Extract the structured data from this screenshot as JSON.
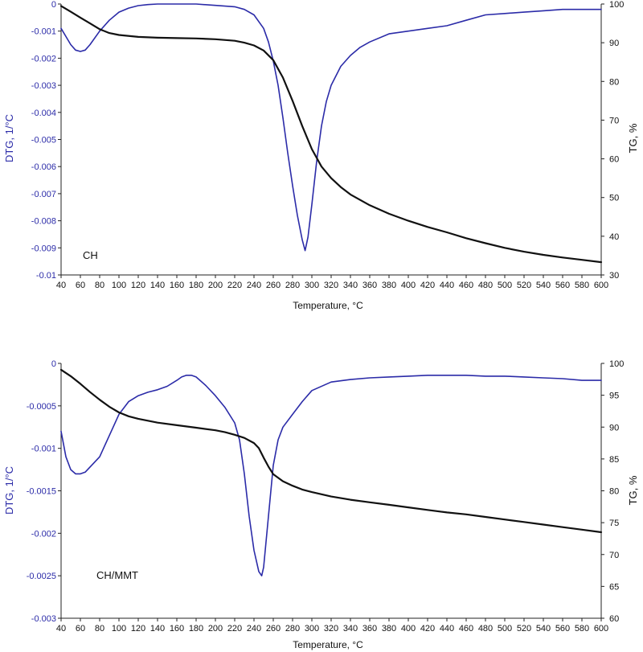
{
  "colors": {
    "dtg": "#2b2ba8",
    "tg": "#111111",
    "axis": "#222222",
    "background": "#ffffff"
  },
  "chart_data": [
    {
      "type": "line",
      "panel_label": "CH",
      "xlabel": "Temperature, °C",
      "ylabel_left": "DTG, 1/°C",
      "ylabel_right": "TG, %",
      "xlim": [
        40,
        600
      ],
      "ylim_left": [
        -0.01,
        0
      ],
      "ylim_right": [
        30,
        100
      ],
      "x_ticks": [
        40,
        60,
        80,
        100,
        120,
        140,
        160,
        180,
        200,
        220,
        240,
        260,
        280,
        300,
        320,
        340,
        360,
        380,
        400,
        420,
        440,
        460,
        480,
        500,
        520,
        540,
        560,
        580,
        600
      ],
      "y_left_ticks": [
        "0",
        "-0.001",
        "-0.002",
        "-0.003",
        "-0.004",
        "-0.005",
        "-0.006",
        "-0.007",
        "-0.008",
        "-0.009",
        "-0.01"
      ],
      "y_right_ticks": [
        "100",
        "90",
        "80",
        "70",
        "60",
        "50",
        "40",
        "30"
      ],
      "grid": false,
      "series": [
        {
          "axis": "left",
          "color": "#2b2ba8",
          "x": [
            40,
            45,
            50,
            55,
            60,
            65,
            70,
            80,
            90,
            100,
            110,
            120,
            130,
            140,
            160,
            180,
            200,
            220,
            230,
            240,
            250,
            255,
            260,
            265,
            270,
            275,
            280,
            285,
            290,
            293,
            296,
            300,
            305,
            310,
            315,
            320,
            330,
            340,
            350,
            360,
            380,
            400,
            420,
            440,
            460,
            480,
            500,
            520,
            540,
            560,
            580,
            600
          ],
          "y": [
            -0.0009,
            -0.0012,
            -0.0015,
            -0.0017,
            -0.00175,
            -0.0017,
            -0.0015,
            -0.001,
            -0.0006,
            -0.0003,
            -0.00015,
            -6e-05,
            -2e-05,
            0,
            0,
            0,
            -5e-05,
            -0.0001,
            -0.0002,
            -0.0004,
            -0.0009,
            -0.0014,
            -0.0021,
            -0.003,
            -0.0042,
            -0.0055,
            -0.0067,
            -0.0078,
            -0.0087,
            -0.0091,
            -0.0086,
            -0.0074,
            -0.0058,
            -0.0045,
            -0.0036,
            -0.003,
            -0.0023,
            -0.0019,
            -0.0016,
            -0.0014,
            -0.0011,
            -0.001,
            -0.0009,
            -0.0008,
            -0.0006,
            -0.0004,
            -0.00035,
            -0.0003,
            -0.00025,
            -0.0002,
            -0.0002,
            -0.0002
          ]
        },
        {
          "axis": "right",
          "color": "#111111",
          "x": [
            40,
            50,
            60,
            70,
            80,
            90,
            100,
            120,
            140,
            160,
            180,
            200,
            220,
            230,
            240,
            250,
            260,
            270,
            280,
            290,
            300,
            310,
            320,
            330,
            340,
            360,
            380,
            400,
            420,
            440,
            460,
            480,
            500,
            520,
            540,
            560,
            580,
            600
          ],
          "y": [
            99.5,
            98,
            96.5,
            95,
            93.5,
            92.5,
            92,
            91.5,
            91.3,
            91.2,
            91.1,
            90.9,
            90.5,
            90,
            89.3,
            88,
            85.5,
            81,
            75,
            68.5,
            62.5,
            58,
            55,
            52.7,
            50.8,
            48,
            45.8,
            44,
            42.4,
            41,
            39.5,
            38.2,
            37,
            36,
            35.2,
            34.5,
            33.9,
            33.3
          ]
        }
      ]
    },
    {
      "type": "line",
      "panel_label": "CH/MMT",
      "xlabel": "Temperature, °C",
      "ylabel_left": "DTG, 1/°C",
      "ylabel_right": "TG, %",
      "xlim": [
        40,
        600
      ],
      "ylim_left": [
        -0.003,
        0
      ],
      "ylim_right": [
        60,
        100
      ],
      "x_ticks": [
        40,
        60,
        80,
        100,
        120,
        140,
        160,
        180,
        200,
        220,
        240,
        260,
        280,
        300,
        320,
        340,
        360,
        380,
        400,
        420,
        440,
        460,
        480,
        500,
        520,
        540,
        560,
        580,
        600
      ],
      "y_left_ticks": [
        "0",
        "-0.0005",
        "-0.001",
        "-0.0015",
        "-0.002",
        "-0.0025",
        "-0.003"
      ],
      "y_right_ticks": [
        "100",
        "95",
        "90",
        "85",
        "80",
        "75",
        "70",
        "65",
        "60"
      ],
      "grid": false,
      "series": [
        {
          "axis": "left",
          "color": "#2b2ba8",
          "x": [
            40,
            45,
            50,
            55,
            60,
            65,
            70,
            80,
            90,
            100,
            110,
            120,
            130,
            140,
            150,
            160,
            165,
            170,
            175,
            180,
            190,
            200,
            210,
            220,
            225,
            230,
            235,
            240,
            245,
            248,
            250,
            255,
            260,
            265,
            270,
            280,
            290,
            300,
            320,
            340,
            360,
            380,
            400,
            420,
            440,
            460,
            480,
            500,
            520,
            540,
            560,
            580,
            600
          ],
          "y": [
            -0.0008,
            -0.0011,
            -0.00125,
            -0.0013,
            -0.0013,
            -0.00128,
            -0.00122,
            -0.0011,
            -0.00085,
            -0.0006,
            -0.00045,
            -0.00038,
            -0.00034,
            -0.00031,
            -0.00027,
            -0.0002,
            -0.00016,
            -0.00014,
            -0.00014,
            -0.00016,
            -0.00026,
            -0.00038,
            -0.00052,
            -0.0007,
            -0.0009,
            -0.0013,
            -0.0018,
            -0.0022,
            -0.00245,
            -0.0025,
            -0.0024,
            -0.0018,
            -0.0012,
            -0.0009,
            -0.00075,
            -0.0006,
            -0.00045,
            -0.00032,
            -0.00022,
            -0.00019,
            -0.00017,
            -0.00016,
            -0.00015,
            -0.00014,
            -0.00014,
            -0.00014,
            -0.00015,
            -0.00015,
            -0.00016,
            -0.00017,
            -0.00018,
            -0.0002,
            -0.0002
          ]
        },
        {
          "axis": "right",
          "color": "#111111",
          "x": [
            40,
            50,
            60,
            70,
            80,
            90,
            100,
            110,
            120,
            140,
            160,
            180,
            200,
            210,
            220,
            230,
            240,
            245,
            250,
            255,
            260,
            270,
            280,
            290,
            300,
            320,
            340,
            360,
            380,
            400,
            420,
            440,
            460,
            480,
            500,
            520,
            540,
            560,
            580,
            600
          ],
          "y": [
            99,
            98,
            96.8,
            95.5,
            94.3,
            93.2,
            92.3,
            91.7,
            91.3,
            90.7,
            90.3,
            89.9,
            89.5,
            89.2,
            88.8,
            88.3,
            87.5,
            86.7,
            85.2,
            83.8,
            82.6,
            81.5,
            80.8,
            80.2,
            79.8,
            79.1,
            78.6,
            78.2,
            77.8,
            77.4,
            77,
            76.6,
            76.3,
            75.9,
            75.5,
            75.1,
            74.7,
            74.3,
            73.9,
            73.5
          ]
        }
      ]
    }
  ]
}
